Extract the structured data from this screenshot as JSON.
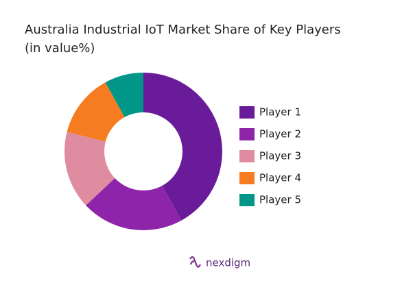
{
  "chart_data": {
    "type": "donut",
    "title": "Australia Industrial IoT Market Share of Key Players",
    "subtitle": "(in value%)",
    "categories": [
      "Player 1",
      "Player 2",
      "Player 3",
      "Player 4",
      "Player 5"
    ],
    "values": [
      42,
      21,
      16,
      13,
      8
    ],
    "colors": [
      "#6a1b9a",
      "#8e24aa",
      "#e08ca0",
      "#f57c20",
      "#009688"
    ],
    "legend": "right"
  },
  "logo_text": "nexdigm"
}
